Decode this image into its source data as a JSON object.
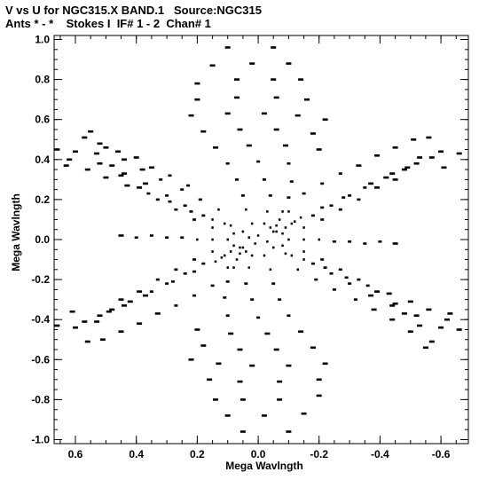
{
  "title_line1": "V vs U for NGC315.X BAND.1   Source:NGC315",
  "title_line2": "Ants * - *    Stokes I  IF# 1 - 2  Chan# 1",
  "chart_data": {
    "type": "scatter",
    "title": "V vs U for NGC315.X BAND.1   Source:NGC315",
    "subtitle": "Ants * - *    Stokes I  IF# 1 - 2  Chan# 1",
    "xlabel": "Mega Wavlngth",
    "ylabel": "Mega Wavlngth",
    "xlim": [
      0.67,
      -0.69
    ],
    "ylim": [
      -1.02,
      1.02
    ],
    "xticks": [
      0.6,
      0.4,
      0.2,
      0.0,
      -0.2,
      -0.4,
      -0.6
    ],
    "xtick_labels": [
      "0.6",
      "0.4",
      "0.2",
      "0.0",
      "-0.2",
      "-0.4",
      "-0.6"
    ],
    "yticks": [
      1.0,
      0.8,
      0.6,
      0.4,
      0.2,
      0.0,
      -0.2,
      -0.4,
      -0.6,
      -0.8,
      -1.0
    ],
    "ytick_labels": [
      "1.0",
      "0.8",
      "0.6",
      "0.4",
      "0.2",
      "0.0",
      "-0.2",
      "-0.4",
      "-0.6",
      "-0.8",
      "-1.0"
    ],
    "grid": false,
    "marker_color": "#000000",
    "series": [
      {
        "points": [
          [
            0.66,
            0.45
          ],
          [
            0.63,
            0.37
          ],
          [
            0.55,
            0.54
          ],
          [
            0.53,
            0.43
          ],
          [
            0.48,
            0.37
          ],
          [
            0.45,
            0.32
          ],
          [
            0.39,
            0.26
          ],
          [
            0.33,
            0.2
          ],
          [
            0.27,
            0.15
          ],
          [
            0.21,
            0.1
          ],
          [
            0.15,
            0.06
          ],
          [
            0.08,
            0.03
          ],
          [
            0.6,
            0.44
          ],
          [
            0.52,
            0.38
          ],
          [
            0.44,
            0.33
          ],
          [
            0.37,
            0.28
          ],
          [
            0.3,
            0.22
          ],
          [
            0.24,
            0.17
          ],
          [
            0.18,
            0.12
          ],
          [
            0.11,
            0.08
          ],
          [
            0.05,
            0.04
          ],
          [
            0.57,
            0.51
          ],
          [
            0.5,
            0.46
          ],
          [
            0.44,
            0.4
          ],
          [
            0.38,
            0.35
          ],
          [
            0.32,
            0.3
          ],
          [
            0.25,
            0.25
          ],
          [
            0.19,
            0.2
          ],
          [
            0.13,
            0.15
          ],
          [
            0.62,
            0.4
          ],
          [
            0.56,
            0.35
          ],
          [
            0.5,
            0.31
          ],
          [
            0.43,
            0.27
          ],
          [
            0.36,
            0.23
          ],
          [
            0.29,
            0.19
          ],
          [
            0.22,
            0.14
          ],
          [
            0.15,
            0.1
          ],
          [
            0.09,
            0.07
          ],
          [
            0.52,
            0.48
          ],
          [
            0.46,
            0.44
          ],
          [
            0.4,
            0.41
          ],
          [
            0.35,
            0.36
          ],
          [
            0.29,
            0.32
          ],
          [
            0.23,
            0.27
          ],
          [
            0.66,
            -0.43
          ],
          [
            0.61,
            -0.36
          ],
          [
            0.56,
            -0.51
          ],
          [
            0.53,
            -0.41
          ],
          [
            0.48,
            -0.35
          ],
          [
            0.45,
            -0.3
          ],
          [
            0.39,
            -0.26
          ],
          [
            0.33,
            -0.2
          ],
          [
            0.27,
            -0.15
          ],
          [
            0.21,
            -0.1
          ],
          [
            0.15,
            -0.06
          ],
          [
            0.08,
            -0.03
          ],
          [
            0.6,
            -0.44
          ],
          [
            0.52,
            -0.38
          ],
          [
            0.44,
            -0.33
          ],
          [
            0.37,
            -0.28
          ],
          [
            0.3,
            -0.22
          ],
          [
            0.24,
            -0.17
          ],
          [
            0.18,
            -0.12
          ],
          [
            0.11,
            -0.08
          ],
          [
            0.05,
            -0.04
          ],
          [
            0.51,
            -0.5
          ],
          [
            0.45,
            -0.46
          ],
          [
            0.39,
            -0.42
          ],
          [
            0.33,
            -0.37
          ],
          [
            0.27,
            -0.33
          ],
          [
            0.21,
            -0.28
          ],
          [
            0.15,
            -0.23
          ],
          [
            0.57,
            -0.41
          ],
          [
            0.49,
            -0.36
          ],
          [
            0.42,
            -0.31
          ],
          [
            0.35,
            -0.26
          ],
          [
            0.28,
            -0.21
          ],
          [
            0.21,
            -0.16
          ],
          [
            0.14,
            -0.11
          ],
          [
            -0.66,
            0.43
          ],
          [
            -0.61,
            0.36
          ],
          [
            -0.56,
            0.51
          ],
          [
            -0.53,
            0.41
          ],
          [
            -0.48,
            0.35
          ],
          [
            -0.45,
            0.3
          ],
          [
            -0.39,
            0.26
          ],
          [
            -0.33,
            0.2
          ],
          [
            -0.27,
            0.15
          ],
          [
            -0.21,
            0.1
          ],
          [
            -0.15,
            0.06
          ],
          [
            -0.08,
            0.03
          ],
          [
            -0.6,
            0.44
          ],
          [
            -0.52,
            0.38
          ],
          [
            -0.44,
            0.33
          ],
          [
            -0.37,
            0.28
          ],
          [
            -0.3,
            0.22
          ],
          [
            -0.24,
            0.17
          ],
          [
            -0.18,
            0.12
          ],
          [
            -0.11,
            0.08
          ],
          [
            -0.05,
            0.04
          ],
          [
            -0.51,
            0.5
          ],
          [
            -0.45,
            0.46
          ],
          [
            -0.39,
            0.42
          ],
          [
            -0.33,
            0.37
          ],
          [
            -0.27,
            0.33
          ],
          [
            -0.21,
            0.28
          ],
          [
            -0.15,
            0.23
          ],
          [
            -0.57,
            0.41
          ],
          [
            -0.49,
            0.36
          ],
          [
            -0.42,
            0.31
          ],
          [
            -0.35,
            0.26
          ],
          [
            -0.28,
            0.21
          ],
          [
            -0.21,
            0.16
          ],
          [
            -0.14,
            0.11
          ],
          [
            -0.66,
            -0.45
          ],
          [
            -0.63,
            -0.37
          ],
          [
            -0.55,
            -0.54
          ],
          [
            -0.53,
            -0.43
          ],
          [
            -0.48,
            -0.37
          ],
          [
            -0.45,
            -0.32
          ],
          [
            -0.39,
            -0.26
          ],
          [
            -0.33,
            -0.2
          ],
          [
            -0.27,
            -0.15
          ],
          [
            -0.21,
            -0.1
          ],
          [
            -0.15,
            -0.06
          ],
          [
            -0.08,
            -0.03
          ],
          [
            -0.6,
            -0.44
          ],
          [
            -0.52,
            -0.38
          ],
          [
            -0.44,
            -0.33
          ],
          [
            -0.37,
            -0.28
          ],
          [
            -0.3,
            -0.22
          ],
          [
            -0.24,
            -0.17
          ],
          [
            -0.18,
            -0.12
          ],
          [
            -0.11,
            -0.08
          ],
          [
            -0.05,
            -0.04
          ],
          [
            -0.57,
            -0.51
          ],
          [
            -0.5,
            -0.46
          ],
          [
            -0.44,
            -0.4
          ],
          [
            -0.38,
            -0.35
          ],
          [
            -0.32,
            -0.3
          ],
          [
            -0.25,
            -0.25
          ],
          [
            -0.19,
            -0.2
          ],
          [
            -0.13,
            -0.15
          ],
          [
            -0.62,
            -0.4
          ],
          [
            -0.56,
            -0.35
          ],
          [
            -0.5,
            -0.31
          ],
          [
            -0.43,
            -0.27
          ],
          [
            -0.36,
            -0.23
          ],
          [
            -0.29,
            -0.19
          ],
          [
            -0.22,
            -0.14
          ],
          [
            -0.15,
            -0.1
          ],
          [
            -0.09,
            -0.07
          ],
          [
            0.1,
            0.96
          ],
          [
            -0.05,
            0.96
          ],
          [
            0.15,
            0.87
          ],
          [
            0.02,
            0.88
          ],
          [
            -0.1,
            0.88
          ],
          [
            0.2,
            0.78
          ],
          [
            0.07,
            0.8
          ],
          [
            -0.05,
            0.8
          ],
          [
            -0.14,
            0.8
          ],
          [
            0.2,
            0.7
          ],
          [
            0.07,
            0.71
          ],
          [
            -0.06,
            0.71
          ],
          [
            -0.16,
            0.7
          ],
          [
            0.22,
            0.62
          ],
          [
            0.1,
            0.63
          ],
          [
            -0.02,
            0.63
          ],
          [
            -0.13,
            0.62
          ],
          [
            -0.22,
            0.6
          ],
          [
            0.18,
            0.54
          ],
          [
            0.06,
            0.55
          ],
          [
            -0.06,
            0.55
          ],
          [
            -0.18,
            0.53
          ],
          [
            0.14,
            0.46
          ],
          [
            0.03,
            0.47
          ],
          [
            -0.09,
            0.47
          ],
          [
            -0.2,
            0.45
          ],
          [
            0.1,
            0.38
          ],
          [
            0.0,
            0.39
          ],
          [
            -0.1,
            0.38
          ],
          [
            0.07,
            0.3
          ],
          [
            -0.02,
            0.3
          ],
          [
            -0.11,
            0.29
          ],
          [
            0.05,
            0.22
          ],
          [
            -0.04,
            0.22
          ],
          [
            -0.1,
            0.21
          ],
          [
            0.04,
            0.15
          ],
          [
            -0.03,
            0.14
          ],
          [
            -0.08,
            0.14
          ],
          [
            0.02,
            0.08
          ],
          [
            -0.02,
            0.08
          ],
          [
            -0.06,
            0.07
          ],
          [
            -0.1,
            -0.96
          ],
          [
            0.05,
            -0.96
          ],
          [
            -0.15,
            -0.87
          ],
          [
            -0.02,
            -0.88
          ],
          [
            0.1,
            -0.88
          ],
          [
            -0.2,
            -0.78
          ],
          [
            -0.07,
            -0.8
          ],
          [
            0.05,
            -0.8
          ],
          [
            0.14,
            -0.8
          ],
          [
            -0.2,
            -0.7
          ],
          [
            -0.07,
            -0.71
          ],
          [
            0.06,
            -0.71
          ],
          [
            0.16,
            -0.7
          ],
          [
            -0.22,
            -0.62
          ],
          [
            -0.1,
            -0.63
          ],
          [
            0.02,
            -0.63
          ],
          [
            0.13,
            -0.62
          ],
          [
            0.22,
            -0.6
          ],
          [
            -0.18,
            -0.54
          ],
          [
            -0.06,
            -0.55
          ],
          [
            0.06,
            -0.55
          ],
          [
            0.18,
            -0.53
          ],
          [
            -0.14,
            -0.46
          ],
          [
            -0.03,
            -0.47
          ],
          [
            0.09,
            -0.47
          ],
          [
            0.2,
            -0.45
          ],
          [
            -0.1,
            -0.38
          ],
          [
            0.0,
            -0.39
          ],
          [
            0.1,
            -0.38
          ],
          [
            -0.07,
            -0.3
          ],
          [
            0.02,
            -0.3
          ],
          [
            0.11,
            -0.29
          ],
          [
            -0.05,
            -0.22
          ],
          [
            0.04,
            -0.22
          ],
          [
            0.1,
            -0.21
          ],
          [
            -0.04,
            -0.15
          ],
          [
            0.03,
            -0.14
          ],
          [
            0.08,
            -0.14
          ],
          [
            -0.02,
            -0.08
          ],
          [
            0.02,
            -0.08
          ],
          [
            0.06,
            -0.07
          ],
          [
            0.35,
            0.02
          ],
          [
            0.3,
            0.01
          ],
          [
            0.25,
            0.01
          ],
          [
            0.2,
            0.0
          ],
          [
            0.15,
            0.0
          ],
          [
            0.1,
            0.0
          ],
          [
            -0.1,
            0.0
          ],
          [
            -0.15,
            0.0
          ],
          [
            -0.2,
            0.0
          ],
          [
            -0.25,
            -0.01
          ],
          [
            -0.3,
            -0.01
          ],
          [
            -0.35,
            -0.02
          ],
          [
            0.4,
            0.01
          ],
          [
            -0.4,
            -0.01
          ],
          [
            0.45,
            0.02
          ],
          [
            -0.45,
            -0.02
          ],
          [
            0.03,
            0.01
          ],
          [
            -0.03,
            -0.01
          ],
          [
            0.0,
            0.02
          ],
          [
            0.01,
            -0.02
          ],
          [
            -0.06,
            0.04
          ],
          [
            0.06,
            -0.04
          ],
          [
            -0.09,
            0.06
          ],
          [
            0.09,
            -0.06
          ],
          [
            -0.12,
            0.09
          ],
          [
            0.12,
            -0.09
          ],
          [
            -0.04,
            0.06
          ],
          [
            0.04,
            -0.06
          ],
          [
            -0.07,
            0.1
          ],
          [
            0.07,
            -0.1
          ],
          [
            -0.1,
            0.14
          ],
          [
            0.1,
            -0.14
          ]
        ]
      }
    ]
  }
}
